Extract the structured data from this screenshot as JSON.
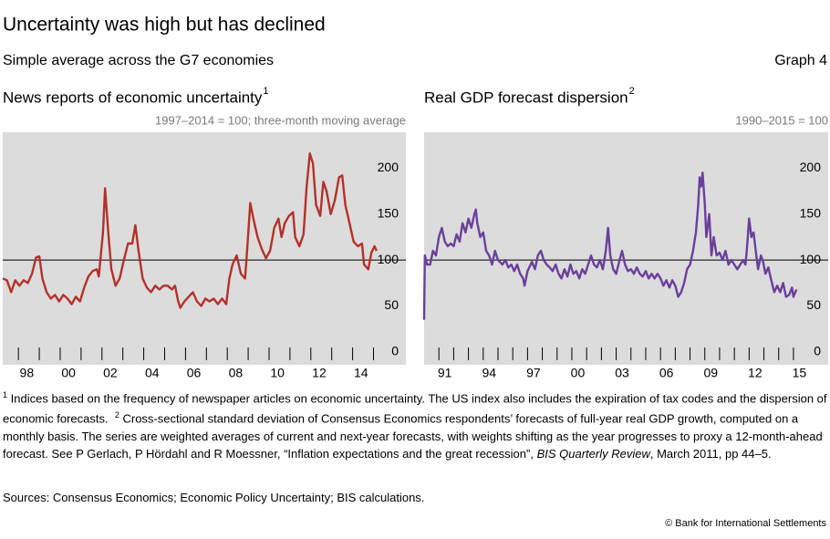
{
  "title": "Uncertainty was high but has declined",
  "subtitle": "Simple average across the G7 economies",
  "graph_label": "Graph 4",
  "footnotes": [
    {
      "marker": "1",
      "text": "Indices based on the frequency of newspaper articles on economic uncertainty. The US index also includes the expiration of tax codes and the dispersion of economic forecasts."
    },
    {
      "marker": "2",
      "text": "Cross-sectional standard deviation of Consensus Economics respondents’ forecasts of full-year real GDP growth, computed on a monthly basis. The series are weighted averages of current and next-year forecasts, with weights shifting as the year progresses to proxy a 12-month-ahead forecast. See P Gerlach, P Hördahl and R Moessner, “Inflation expectations and the great recession”, ",
      "italic": "BIS Quarterly Review",
      "text_end": ", March 2011, pp 44–5."
    }
  ],
  "sources": "Sources: Consensus Economics; Economic Policy Uncertainty; BIS calculations.",
  "copyright": "© Bank for International Settlements",
  "chart_data": [
    {
      "type": "line",
      "title": "News reports of economic uncertainty",
      "title_note": "1",
      "subtitle": "1997–2014 = 100; three-month moving average",
      "color": "#b5302a",
      "reference_line": 100,
      "xlim": [
        1997.25,
        2016.55
      ],
      "ylim": [
        -14,
        239
      ],
      "yticks": [
        0,
        50,
        100,
        150,
        200
      ],
      "xticks": [
        {
          "value": 1998,
          "label": "98"
        },
        {
          "value": 2000,
          "label": "00"
        },
        {
          "value": 2002,
          "label": "02"
        },
        {
          "value": 2004,
          "label": "04"
        },
        {
          "value": 2006,
          "label": "06"
        },
        {
          "value": 2008,
          "label": "08"
        },
        {
          "value": 2010,
          "label": "10"
        },
        {
          "value": 2012,
          "label": "12"
        },
        {
          "value": 2014,
          "label": "14"
        }
      ],
      "x_minor_ticks": [
        1998,
        1999,
        2000,
        2001,
        2002,
        2003,
        2004,
        2005,
        2006,
        2007,
        2008,
        2009,
        2010,
        2011,
        2012,
        2013,
        2014,
        2015
      ],
      "x": [
        1997.25,
        1997.45,
        1997.65,
        1997.85,
        1998.05,
        1998.25,
        1998.45,
        1998.65,
        1998.85,
        1999.0,
        1999.15,
        1999.35,
        1999.55,
        1999.75,
        1999.95,
        2000.15,
        2000.35,
        2000.55,
        2000.75,
        2000.95,
        2001.15,
        2001.35,
        2001.55,
        2001.75,
        2001.85,
        2002.05,
        2002.15,
        2002.3,
        2002.45,
        2002.65,
        2002.85,
        2003.05,
        2003.25,
        2003.45,
        2003.6,
        2003.75,
        2003.95,
        2004.15,
        2004.35,
        2004.55,
        2004.75,
        2004.95,
        2005.15,
        2005.35,
        2005.5,
        2005.65,
        2005.75,
        2005.95,
        2006.15,
        2006.35,
        2006.55,
        2006.75,
        2006.95,
        2007.15,
        2007.35,
        2007.55,
        2007.75,
        2007.95,
        2008.1,
        2008.25,
        2008.45,
        2008.65,
        2008.85,
        2008.95,
        2009.1,
        2009.25,
        2009.45,
        2009.65,
        2009.85,
        2010.05,
        2010.25,
        2010.45,
        2010.6,
        2010.75,
        2010.95,
        2011.15,
        2011.25,
        2011.45,
        2011.65,
        2011.8,
        2011.95,
        2012.1,
        2012.25,
        2012.45,
        2012.6,
        2012.75,
        2012.95,
        2013.15,
        2013.35,
        2013.5,
        2013.65,
        2013.85,
        2014.05,
        2014.25,
        2014.45,
        2014.55,
        2014.75,
        2014.9,
        2015.05,
        2015.15
      ],
      "values": [
        80,
        78,
        65,
        78,
        72,
        78,
        75,
        85,
        103,
        104,
        80,
        65,
        58,
        62,
        55,
        62,
        58,
        52,
        60,
        55,
        70,
        82,
        88,
        90,
        82,
        130,
        178,
        130,
        90,
        72,
        80,
        100,
        118,
        118,
        138,
        110,
        80,
        70,
        65,
        72,
        68,
        72,
        72,
        68,
        72,
        55,
        48,
        55,
        60,
        65,
        55,
        50,
        58,
        55,
        58,
        52,
        58,
        52,
        80,
        95,
        105,
        85,
        80,
        110,
        162,
        145,
        125,
        112,
        102,
        110,
        135,
        145,
        125,
        140,
        148,
        152,
        125,
        115,
        128,
        180,
        216,
        205,
        160,
        148,
        185,
        175,
        150,
        165,
        190,
        192,
        160,
        140,
        120,
        115,
        118,
        95,
        90,
        108,
        115,
        110
      ]
    },
    {
      "type": "line",
      "title": "Real GDP forecast dispersion",
      "title_note": "2",
      "subtitle": "1990–2015 = 100",
      "color": "#6a3f9c",
      "reference_line": 100,
      "xlim": [
        1990,
        2017.35
      ],
      "ylim": [
        -14,
        239
      ],
      "yticks": [
        0,
        50,
        100,
        150,
        200
      ],
      "xticks": [
        {
          "value": 1991,
          "label": "91"
        },
        {
          "value": 1994,
          "label": "94"
        },
        {
          "value": 1997,
          "label": "97"
        },
        {
          "value": 2000,
          "label": "00"
        },
        {
          "value": 2003,
          "label": "03"
        },
        {
          "value": 2006,
          "label": "06"
        },
        {
          "value": 2009,
          "label": "09"
        },
        {
          "value": 2012,
          "label": "12"
        },
        {
          "value": 2015,
          "label": "15"
        }
      ],
      "x_minor_ticks": [
        1991,
        1992,
        1993,
        1994,
        1995,
        1996,
        1997,
        1998,
        1999,
        2000,
        2001,
        2002,
        2003,
        2004,
        2005,
        2006,
        2007,
        2008,
        2009,
        2010,
        2011,
        2012,
        2013,
        2014,
        2015
      ],
      "x": [
        1990.0,
        1990.05,
        1990.2,
        1990.4,
        1990.6,
        1990.8,
        1991.0,
        1991.2,
        1991.4,
        1991.6,
        1991.8,
        1992.0,
        1992.2,
        1992.4,
        1992.6,
        1992.8,
        1993.0,
        1993.2,
        1993.4,
        1993.5,
        1993.6,
        1993.8,
        1994.0,
        1994.2,
        1994.4,
        1994.6,
        1994.8,
        1995.0,
        1995.3,
        1995.5,
        1995.7,
        1995.9,
        1996.1,
        1996.3,
        1996.5,
        1996.7,
        1996.8,
        1997.0,
        1997.3,
        1997.5,
        1997.7,
        1997.9,
        1998.1,
        1998.3,
        1998.5,
        1998.7,
        1998.9,
        1999.1,
        1999.3,
        1999.5,
        1999.7,
        1999.9,
        2000.1,
        2000.3,
        2000.5,
        2000.7,
        2000.9,
        2001.1,
        2001.3,
        2001.5,
        2001.7,
        2001.9,
        2002.1,
        2002.3,
        2002.45,
        2002.6,
        2002.8,
        2003.0,
        2003.2,
        2003.4,
        2003.6,
        2003.8,
        2004.0,
        2004.2,
        2004.4,
        2004.6,
        2004.8,
        2005.0,
        2005.2,
        2005.4,
        2005.6,
        2005.8,
        2006.0,
        2006.2,
        2006.4,
        2006.6,
        2006.8,
        2007.0,
        2007.2,
        2007.4,
        2007.6,
        2007.8,
        2008.0,
        2008.2,
        2008.4,
        2008.55,
        2008.65,
        2008.75,
        2008.85,
        2009.0,
        2009.1,
        2009.3,
        2009.45,
        2009.6,
        2009.8,
        2010.0,
        2010.2,
        2010.4,
        2010.6,
        2010.8,
        2011.0,
        2011.2,
        2011.4,
        2011.6,
        2011.75,
        2011.85,
        2012.0,
        2012.15,
        2012.3,
        2012.45,
        2012.6,
        2012.8,
        2012.95,
        2013.1,
        2013.3,
        2013.5,
        2013.7,
        2013.9,
        2014.1,
        2014.3,
        2014.5,
        2014.7,
        2014.9,
        2015.0,
        2015.2
      ],
      "values": [
        35,
        105,
        95,
        95,
        110,
        105,
        125,
        135,
        120,
        115,
        118,
        115,
        128,
        120,
        140,
        130,
        145,
        135,
        150,
        155,
        140,
        125,
        130,
        110,
        105,
        95,
        110,
        100,
        95,
        100,
        92,
        95,
        88,
        95,
        85,
        80,
        72,
        88,
        98,
        90,
        105,
        110,
        100,
        95,
        92,
        88,
        95,
        85,
        80,
        90,
        82,
        95,
        85,
        88,
        80,
        90,
        85,
        95,
        105,
        95,
        92,
        100,
        90,
        110,
        135,
        105,
        90,
        85,
        98,
        110,
        95,
        88,
        90,
        85,
        92,
        85,
        82,
        88,
        80,
        85,
        80,
        85,
        80,
        72,
        78,
        70,
        78,
        72,
        60,
        65,
        75,
        90,
        95,
        110,
        130,
        160,
        190,
        180,
        195,
        160,
        125,
        150,
        105,
        125,
        105,
        108,
        100,
        110,
        95,
        100,
        95,
        90,
        95,
        100,
        95,
        112,
        145,
        125,
        130,
        110,
        90,
        105,
        98,
        85,
        92,
        78,
        65,
        72,
        65,
        75,
        60,
        62,
        70,
        60,
        68
      ]
    }
  ]
}
